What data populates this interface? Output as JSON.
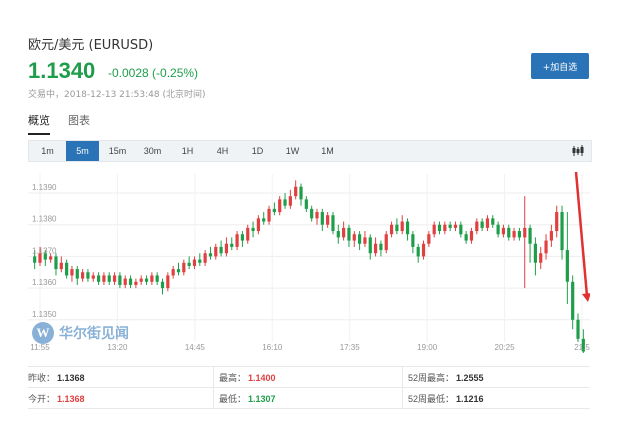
{
  "header": {
    "title": "欧元/美元 (EURUSD)",
    "price": "1.1340",
    "change": "-0.0028 (-0.25%)",
    "status": "交易中，2018-12-13 21:53:48 (北京时间)",
    "add_button": "+加自选"
  },
  "tabs": [
    {
      "label": "概览",
      "active": true
    },
    {
      "label": "图表",
      "active": false
    }
  ],
  "periods": [
    {
      "label": "1m",
      "active": false
    },
    {
      "label": "5m",
      "active": true
    },
    {
      "label": "15m",
      "active": false
    },
    {
      "label": "30m",
      "active": false
    },
    {
      "label": "1H",
      "active": false
    },
    {
      "label": "4H",
      "active": false
    },
    {
      "label": "1D",
      "active": false
    },
    {
      "label": "1W",
      "active": false
    },
    {
      "label": "1M",
      "active": false
    }
  ],
  "colors": {
    "up": "#e04040",
    "down": "#1e9e4a",
    "accent": "#2a73b7",
    "arrow": "#e03030"
  },
  "chart_data": {
    "type": "candlestick",
    "x_ticks": [
      "11:55",
      "13:20",
      "14:45",
      "16:10",
      "17:35",
      "19:00",
      "20:25",
      "21:5"
    ],
    "y_ticks": [
      "1.1390",
      "1.1380",
      "1.1370",
      "1.1360",
      "1.1350"
    ],
    "y_tick_values": [
      1.139,
      1.138,
      1.137,
      1.136,
      1.135
    ],
    "ylim": [
      1.1343,
      1.1396
    ],
    "annotation": "downward red arrow at end of series",
    "series": [
      {
        "o": 1.137,
        "c": 1.1368,
        "h": 1.1372,
        "l": 1.1366
      },
      {
        "o": 1.1368,
        "c": 1.1371,
        "h": 1.1373,
        "l": 1.1367
      },
      {
        "o": 1.1371,
        "c": 1.1369,
        "h": 1.1372,
        "l": 1.1367
      },
      {
        "o": 1.1369,
        "c": 1.137,
        "h": 1.1371,
        "l": 1.1368
      },
      {
        "o": 1.137,
        "c": 1.1366,
        "h": 1.1371,
        "l": 1.1364
      },
      {
        "o": 1.1366,
        "c": 1.1368,
        "h": 1.137,
        "l": 1.1365
      },
      {
        "o": 1.1368,
        "c": 1.1364,
        "h": 1.1369,
        "l": 1.1363
      },
      {
        "o": 1.1364,
        "c": 1.1366,
        "h": 1.1367,
        "l": 1.1362
      },
      {
        "o": 1.1366,
        "c": 1.1363,
        "h": 1.1367,
        "l": 1.1361
      },
      {
        "o": 1.1363,
        "c": 1.1365,
        "h": 1.1366,
        "l": 1.1362
      },
      {
        "o": 1.1365,
        "c": 1.1363,
        "h": 1.1366,
        "l": 1.1362
      },
      {
        "o": 1.1363,
        "c": 1.1364,
        "h": 1.1365,
        "l": 1.1362
      },
      {
        "o": 1.1364,
        "c": 1.1362,
        "h": 1.1365,
        "l": 1.1361
      },
      {
        "o": 1.1362,
        "c": 1.1364,
        "h": 1.1365,
        "l": 1.1361
      },
      {
        "o": 1.1364,
        "c": 1.1362,
        "h": 1.1365,
        "l": 1.1361
      },
      {
        "o": 1.1362,
        "c": 1.1364,
        "h": 1.1365,
        "l": 1.1361
      },
      {
        "o": 1.1364,
        "c": 1.1361,
        "h": 1.1365,
        "l": 1.136
      },
      {
        "o": 1.1361,
        "c": 1.1363,
        "h": 1.1364,
        "l": 1.136
      },
      {
        "o": 1.1363,
        "c": 1.1361,
        "h": 1.1364,
        "l": 1.136
      },
      {
        "o": 1.1361,
        "c": 1.1362,
        "h": 1.1363,
        "l": 1.136
      },
      {
        "o": 1.1362,
        "c": 1.1363,
        "h": 1.1364,
        "l": 1.1361
      },
      {
        "o": 1.1363,
        "c": 1.1362,
        "h": 1.1364,
        "l": 1.1361
      },
      {
        "o": 1.1362,
        "c": 1.1364,
        "h": 1.1365,
        "l": 1.1361
      },
      {
        "o": 1.1364,
        "c": 1.1362,
        "h": 1.1365,
        "l": 1.1361
      },
      {
        "o": 1.1362,
        "c": 1.136,
        "h": 1.1363,
        "l": 1.1358
      },
      {
        "o": 1.136,
        "c": 1.1364,
        "h": 1.1365,
        "l": 1.1359
      },
      {
        "o": 1.1364,
        "c": 1.1366,
        "h": 1.1367,
        "l": 1.1363
      },
      {
        "o": 1.1366,
        "c": 1.1365,
        "h": 1.1368,
        "l": 1.1364
      },
      {
        "o": 1.1365,
        "c": 1.1368,
        "h": 1.1369,
        "l": 1.1364
      },
      {
        "o": 1.1368,
        "c": 1.1367,
        "h": 1.137,
        "l": 1.1366
      },
      {
        "o": 1.1367,
        "c": 1.1369,
        "h": 1.137,
        "l": 1.1366
      },
      {
        "o": 1.1369,
        "c": 1.1368,
        "h": 1.1371,
        "l": 1.1367
      },
      {
        "o": 1.1368,
        "c": 1.1371,
        "h": 1.1372,
        "l": 1.1367
      },
      {
        "o": 1.1371,
        "c": 1.137,
        "h": 1.1373,
        "l": 1.1369
      },
      {
        "o": 1.137,
        "c": 1.1373,
        "h": 1.1374,
        "l": 1.1369
      },
      {
        "o": 1.1373,
        "c": 1.1371,
        "h": 1.1375,
        "l": 1.137
      },
      {
        "o": 1.1371,
        "c": 1.1374,
        "h": 1.1376,
        "l": 1.137
      },
      {
        "o": 1.1374,
        "c": 1.1373,
        "h": 1.1376,
        "l": 1.1372
      },
      {
        "o": 1.1373,
        "c": 1.1377,
        "h": 1.1378,
        "l": 1.1372
      },
      {
        "o": 1.1377,
        "c": 1.1375,
        "h": 1.1378,
        "l": 1.1373
      },
      {
        "o": 1.1375,
        "c": 1.1379,
        "h": 1.138,
        "l": 1.1374
      },
      {
        "o": 1.1379,
        "c": 1.1378,
        "h": 1.1381,
        "l": 1.1376
      },
      {
        "o": 1.1378,
        "c": 1.1382,
        "h": 1.1383,
        "l": 1.1377
      },
      {
        "o": 1.1382,
        "c": 1.1381,
        "h": 1.1384,
        "l": 1.138
      },
      {
        "o": 1.1381,
        "c": 1.1385,
        "h": 1.1386,
        "l": 1.138
      },
      {
        "o": 1.1385,
        "c": 1.1384,
        "h": 1.1387,
        "l": 1.1383
      },
      {
        "o": 1.1384,
        "c": 1.1388,
        "h": 1.1389,
        "l": 1.1383
      },
      {
        "o": 1.1388,
        "c": 1.1386,
        "h": 1.139,
        "l": 1.1385
      },
      {
        "o": 1.1386,
        "c": 1.1389,
        "h": 1.1391,
        "l": 1.1385
      },
      {
        "o": 1.1389,
        "c": 1.1392,
        "h": 1.1394,
        "l": 1.1388
      },
      {
        "o": 1.1392,
        "c": 1.1388,
        "h": 1.1393,
        "l": 1.1386
      },
      {
        "o": 1.1388,
        "c": 1.1385,
        "h": 1.1389,
        "l": 1.1384
      },
      {
        "o": 1.1385,
        "c": 1.1382,
        "h": 1.1386,
        "l": 1.1381
      },
      {
        "o": 1.1382,
        "c": 1.1384,
        "h": 1.1385,
        "l": 1.138
      },
      {
        "o": 1.1384,
        "c": 1.138,
        "h": 1.1385,
        "l": 1.1378
      },
      {
        "o": 1.138,
        "c": 1.1383,
        "h": 1.1384,
        "l": 1.1379
      },
      {
        "o": 1.1383,
        "c": 1.1378,
        "h": 1.1384,
        "l": 1.1377
      },
      {
        "o": 1.1378,
        "c": 1.1376,
        "h": 1.138,
        "l": 1.1374
      },
      {
        "o": 1.1376,
        "c": 1.1379,
        "h": 1.1381,
        "l": 1.1375
      },
      {
        "o": 1.1379,
        "c": 1.1375,
        "h": 1.138,
        "l": 1.1373
      },
      {
        "o": 1.1375,
        "c": 1.1377,
        "h": 1.1378,
        "l": 1.1373
      },
      {
        "o": 1.1377,
        "c": 1.1374,
        "h": 1.1378,
        "l": 1.1372
      },
      {
        "o": 1.1374,
        "c": 1.1376,
        "h": 1.1378,
        "l": 1.1373
      },
      {
        "o": 1.1376,
        "c": 1.1371,
        "h": 1.1377,
        "l": 1.1369
      },
      {
        "o": 1.1371,
        "c": 1.1374,
        "h": 1.1376,
        "l": 1.137
      },
      {
        "o": 1.1374,
        "c": 1.1372,
        "h": 1.1375,
        "l": 1.137
      },
      {
        "o": 1.1372,
        "c": 1.1377,
        "h": 1.1378,
        "l": 1.1371
      },
      {
        "o": 1.1377,
        "c": 1.138,
        "h": 1.1381,
        "l": 1.1376
      },
      {
        "o": 1.138,
        "c": 1.1378,
        "h": 1.1382,
        "l": 1.1377
      },
      {
        "o": 1.1378,
        "c": 1.1381,
        "h": 1.1383,
        "l": 1.1377
      },
      {
        "o": 1.1381,
        "c": 1.1377,
        "h": 1.1382,
        "l": 1.1375
      },
      {
        "o": 1.1377,
        "c": 1.1373,
        "h": 1.1378,
        "l": 1.1371
      },
      {
        "o": 1.1373,
        "c": 1.137,
        "h": 1.1374,
        "l": 1.1368
      },
      {
        "o": 1.137,
        "c": 1.1374,
        "h": 1.1375,
        "l": 1.1369
      },
      {
        "o": 1.1374,
        "c": 1.1377,
        "h": 1.1378,
        "l": 1.1373
      },
      {
        "o": 1.1377,
        "c": 1.138,
        "h": 1.1381,
        "l": 1.1376
      },
      {
        "o": 1.138,
        "c": 1.1378,
        "h": 1.1381,
        "l": 1.1377
      },
      {
        "o": 1.1378,
        "c": 1.138,
        "h": 1.1381,
        "l": 1.1377
      },
      {
        "o": 1.138,
        "c": 1.1379,
        "h": 1.1381,
        "l": 1.1378
      },
      {
        "o": 1.1379,
        "c": 1.138,
        "h": 1.1381,
        "l": 1.1378
      },
      {
        "o": 1.138,
        "c": 1.1377,
        "h": 1.1381,
        "l": 1.1376
      },
      {
        "o": 1.1377,
        "c": 1.1375,
        "h": 1.1378,
        "l": 1.1374
      },
      {
        "o": 1.1375,
        "c": 1.1378,
        "h": 1.1379,
        "l": 1.1374
      },
      {
        "o": 1.1378,
        "c": 1.1381,
        "h": 1.1382,
        "l": 1.1377
      },
      {
        "o": 1.1381,
        "c": 1.1379,
        "h": 1.1382,
        "l": 1.1378
      },
      {
        "o": 1.1379,
        "c": 1.1382,
        "h": 1.1383,
        "l": 1.1378
      },
      {
        "o": 1.1382,
        "c": 1.138,
        "h": 1.1383,
        "l": 1.1379
      },
      {
        "o": 1.138,
        "c": 1.1377,
        "h": 1.1381,
        "l": 1.1376
      },
      {
        "o": 1.1377,
        "c": 1.1379,
        "h": 1.138,
        "l": 1.1376
      },
      {
        "o": 1.1379,
        "c": 1.1376,
        "h": 1.138,
        "l": 1.1375
      },
      {
        "o": 1.1376,
        "c": 1.1378,
        "h": 1.1379,
        "l": 1.1375
      },
      {
        "o": 1.1378,
        "c": 1.1376,
        "h": 1.1379,
        "l": 1.1375
      },
      {
        "o": 1.1376,
        "c": 1.1379,
        "h": 1.1389,
        "l": 1.136
      },
      {
        "o": 1.1379,
        "c": 1.1374,
        "h": 1.138,
        "l": 1.1368
      },
      {
        "o": 1.1374,
        "c": 1.1368,
        "h": 1.1376,
        "l": 1.1364
      },
      {
        "o": 1.1368,
        "c": 1.1371,
        "h": 1.1373,
        "l": 1.1366
      },
      {
        "o": 1.1371,
        "c": 1.1375,
        "h": 1.1377,
        "l": 1.1369
      },
      {
        "o": 1.1375,
        "c": 1.1378,
        "h": 1.138,
        "l": 1.1373
      },
      {
        "o": 1.1378,
        "c": 1.1384,
        "h": 1.1386,
        "l": 1.1376
      },
      {
        "o": 1.1384,
        "c": 1.1372,
        "h": 1.1386,
        "l": 1.1369
      },
      {
        "o": 1.1372,
        "c": 1.1362,
        "h": 1.1384,
        "l": 1.1355
      },
      {
        "o": 1.1362,
        "c": 1.135,
        "h": 1.1364,
        "l": 1.1347
      },
      {
        "o": 1.135,
        "c": 1.1344,
        "h": 1.1352,
        "l": 1.1343
      },
      {
        "o": 1.1344,
        "c": 1.134,
        "h": 1.1347,
        "l": 1.1339
      }
    ]
  },
  "stats": [
    [
      {
        "label": "昨收：",
        "value": "1.1368",
        "color": "#333333"
      },
      {
        "label": "最高：",
        "value": "1.1400",
        "color": "#e04040"
      },
      {
        "label": "52周最高：",
        "value": "1.2555",
        "color": "#333333"
      }
    ],
    [
      {
        "label": "今开：",
        "value": "1.1368",
        "color": "#e04040"
      },
      {
        "label": "最低：",
        "value": "1.1307",
        "color": "#1e9e4a"
      },
      {
        "label": "52周最低：",
        "value": "1.1216",
        "color": "#333333"
      }
    ]
  ],
  "watermark": {
    "logo_letter": "W",
    "text": "华尔街见闻"
  }
}
